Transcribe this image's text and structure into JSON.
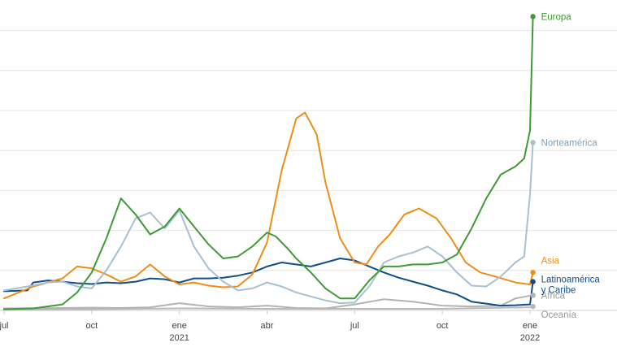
{
  "chart_data": {
    "type": "line",
    "title": "",
    "xlabel": "",
    "ylabel": "",
    "ylim": [
      0,
      7.5
    ],
    "grid": "horizontal",
    "legend": "inline labels at line ends",
    "x_ticks": [
      {
        "x": 0,
        "label": "jul",
        "year": ""
      },
      {
        "x": 3,
        "label": "oct",
        "year": ""
      },
      {
        "x": 6,
        "label": "ene",
        "year": "2021"
      },
      {
        "x": 9,
        "label": "abr",
        "year": ""
      },
      {
        "x": 12,
        "label": "jul",
        "year": ""
      },
      {
        "x": 15,
        "label": "oct",
        "year": ""
      },
      {
        "x": 18,
        "label": "ene",
        "year": "2022"
      }
    ],
    "xlim": [
      0,
      18.5
    ],
    "series": [
      {
        "name": "Oceanía",
        "color": "#b9b9b9",
        "points": [
          [
            0,
            0.02
          ],
          [
            3,
            0.03
          ],
          [
            6,
            0.05
          ],
          [
            9,
            0.04
          ],
          [
            12,
            0.04
          ],
          [
            15,
            0.04
          ],
          [
            18,
            0.08
          ],
          [
            18.1,
            0.1
          ]
        ]
      },
      {
        "name": "África",
        "color": "#b3b3b3",
        "points": [
          [
            0,
            0.05
          ],
          [
            2,
            0.06
          ],
          [
            3,
            0.07
          ],
          [
            4,
            0.06
          ],
          [
            5,
            0.08
          ],
          [
            6,
            0.18
          ],
          [
            7,
            0.1
          ],
          [
            8,
            0.08
          ],
          [
            9,
            0.12
          ],
          [
            10,
            0.06
          ],
          [
            11,
            0.05
          ],
          [
            12,
            0.15
          ],
          [
            13,
            0.28
          ],
          [
            14,
            0.22
          ],
          [
            15,
            0.12
          ],
          [
            16,
            0.1
          ],
          [
            17,
            0.12
          ],
          [
            17.5,
            0.3
          ],
          [
            18.1,
            0.38
          ]
        ]
      },
      {
        "name": "Latinoamérica y Caribe",
        "color": "#124e89",
        "points": [
          [
            0,
            0.48
          ],
          [
            0.8,
            0.5
          ],
          [
            1,
            0.7
          ],
          [
            1.5,
            0.75
          ],
          [
            2,
            0.72
          ],
          [
            2.5,
            0.68
          ],
          [
            3,
            0.66
          ],
          [
            3.5,
            0.7
          ],
          [
            4,
            0.68
          ],
          [
            4.5,
            0.72
          ],
          [
            5,
            0.8
          ],
          [
            5.5,
            0.78
          ],
          [
            6,
            0.7
          ],
          [
            6.5,
            0.8
          ],
          [
            7,
            0.8
          ],
          [
            7.5,
            0.82
          ],
          [
            8,
            0.87
          ],
          [
            8.5,
            0.95
          ],
          [
            9,
            1.1
          ],
          [
            9.5,
            1.2
          ],
          [
            10,
            1.15
          ],
          [
            10.5,
            1.1
          ],
          [
            11,
            1.2
          ],
          [
            11.5,
            1.3
          ],
          [
            12,
            1.25
          ],
          [
            12.5,
            1.1
          ],
          [
            13,
            0.95
          ],
          [
            13.5,
            0.82
          ],
          [
            14,
            0.72
          ],
          [
            14.5,
            0.62
          ],
          [
            15,
            0.5
          ],
          [
            15.5,
            0.4
          ],
          [
            16,
            0.22
          ],
          [
            16.5,
            0.17
          ],
          [
            17,
            0.12
          ],
          [
            17.5,
            0.13
          ],
          [
            18,
            0.15
          ],
          [
            18.1,
            0.72
          ]
        ]
      },
      {
        "name": "Asia",
        "color": "#ed8e1a",
        "points": [
          [
            0,
            0.3
          ],
          [
            0.5,
            0.45
          ],
          [
            1,
            0.6
          ],
          [
            1.5,
            0.7
          ],
          [
            2,
            0.8
          ],
          [
            2.5,
            1.1
          ],
          [
            3,
            1.05
          ],
          [
            3.5,
            0.9
          ],
          [
            4,
            0.72
          ],
          [
            4.5,
            0.85
          ],
          [
            5,
            1.15
          ],
          [
            5.5,
            0.85
          ],
          [
            6,
            0.65
          ],
          [
            6.5,
            0.7
          ],
          [
            7,
            0.62
          ],
          [
            7.5,
            0.58
          ],
          [
            8,
            0.6
          ],
          [
            8.5,
            0.9
          ],
          [
            9,
            1.7
          ],
          [
            9.5,
            3.5
          ],
          [
            10,
            4.8
          ],
          [
            10.3,
            4.95
          ],
          [
            10.7,
            4.4
          ],
          [
            11,
            3.2
          ],
          [
            11.5,
            1.8
          ],
          [
            12,
            1.2
          ],
          [
            12.4,
            1.15
          ],
          [
            12.8,
            1.6
          ],
          [
            13.2,
            1.9
          ],
          [
            13.7,
            2.4
          ],
          [
            14.2,
            2.55
          ],
          [
            14.8,
            2.3
          ],
          [
            15.3,
            1.8
          ],
          [
            15.8,
            1.2
          ],
          [
            16.3,
            0.95
          ],
          [
            16.8,
            0.85
          ],
          [
            17.5,
            0.7
          ],
          [
            18,
            0.65
          ],
          [
            18.1,
            0.95
          ]
        ]
      },
      {
        "name": "Norteamérica",
        "color": "#a6c0d4",
        "points": [
          [
            0,
            0.5
          ],
          [
            0.8,
            0.6
          ],
          [
            1.5,
            0.7
          ],
          [
            2,
            0.72
          ],
          [
            2.5,
            0.6
          ],
          [
            3,
            0.55
          ],
          [
            3.5,
            1.0
          ],
          [
            4,
            1.6
          ],
          [
            4.5,
            2.3
          ],
          [
            5,
            2.45
          ],
          [
            5.5,
            2.05
          ],
          [
            6,
            2.5
          ],
          [
            6.5,
            1.6
          ],
          [
            7,
            1.05
          ],
          [
            7.5,
            0.72
          ],
          [
            8,
            0.5
          ],
          [
            8.5,
            0.55
          ],
          [
            9,
            0.7
          ],
          [
            9.5,
            0.6
          ],
          [
            10,
            0.45
          ],
          [
            10.5,
            0.35
          ],
          [
            11,
            0.25
          ],
          [
            11.5,
            0.18
          ],
          [
            12,
            0.2
          ],
          [
            12.5,
            0.6
          ],
          [
            13,
            1.2
          ],
          [
            13.5,
            1.35
          ],
          [
            14,
            1.45
          ],
          [
            14.5,
            1.6
          ],
          [
            15,
            1.35
          ],
          [
            15.5,
            0.95
          ],
          [
            16,
            0.62
          ],
          [
            16.5,
            0.6
          ],
          [
            17,
            0.85
          ],
          [
            17.5,
            1.2
          ],
          [
            17.8,
            1.35
          ],
          [
            18,
            2.9
          ],
          [
            18.1,
            4.2
          ]
        ]
      },
      {
        "name": "Europa",
        "color": "#3f9b35",
        "points": [
          [
            0,
            0.03
          ],
          [
            1,
            0.05
          ],
          [
            2,
            0.15
          ],
          [
            2.5,
            0.45
          ],
          [
            3,
            0.95
          ],
          [
            3.5,
            1.8
          ],
          [
            4,
            2.8
          ],
          [
            4.5,
            2.4
          ],
          [
            5,
            1.9
          ],
          [
            5.5,
            2.1
          ],
          [
            6,
            2.55
          ],
          [
            6.5,
            2.1
          ],
          [
            7,
            1.65
          ],
          [
            7.5,
            1.3
          ],
          [
            8,
            1.35
          ],
          [
            8.5,
            1.6
          ],
          [
            9,
            1.95
          ],
          [
            9.3,
            1.85
          ],
          [
            9.7,
            1.55
          ],
          [
            10,
            1.3
          ],
          [
            10.5,
            0.95
          ],
          [
            11,
            0.55
          ],
          [
            11.5,
            0.3
          ],
          [
            12,
            0.3
          ],
          [
            12.5,
            0.75
          ],
          [
            13,
            1.1
          ],
          [
            13.5,
            1.1
          ],
          [
            14,
            1.15
          ],
          [
            14.5,
            1.15
          ],
          [
            15,
            1.2
          ],
          [
            15.5,
            1.4
          ],
          [
            16,
            2.05
          ],
          [
            16.5,
            2.8
          ],
          [
            17,
            3.4
          ],
          [
            17.5,
            3.6
          ],
          [
            17.8,
            3.8
          ],
          [
            18,
            4.5
          ],
          [
            18.1,
            7.35
          ]
        ]
      }
    ]
  }
}
